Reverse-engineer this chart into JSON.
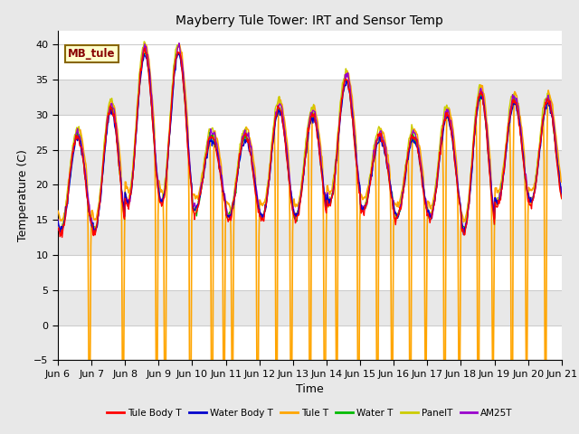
{
  "title": "Mayberry Tule Tower: IRT and Sensor Temp",
  "xlabel": "Time",
  "ylabel": "Temperature (C)",
  "ylim": [
    -5,
    42
  ],
  "yticks": [
    -5,
    0,
    5,
    10,
    15,
    20,
    25,
    30,
    35,
    40
  ],
  "bg_color": "#e8e8e8",
  "plot_bg_light": "#ffffff",
  "plot_bg_dark": "#e8e8e8",
  "legend_label": "MB_tule",
  "legend_entries": [
    "Tule Body T",
    "Water Body T",
    "Tule T",
    "Water T",
    "PanelT",
    "AM25T"
  ],
  "line_colors": [
    "#ff0000",
    "#0000cc",
    "#ffa500",
    "#00bb00",
    "#cccc00",
    "#9900cc"
  ],
  "num_points": 720,
  "days": [
    "Jun 6",
    "Jun 7",
    "Jun 8",
    "Jun 9",
    "Jun 10",
    "Jun 11",
    "Jun 12",
    "Jun 13",
    "Jun 14",
    "Jun 15",
    "Jun 16",
    "Jun 17",
    "Jun 18",
    "Jun 19",
    "Jun 20",
    "Jun 21"
  ]
}
